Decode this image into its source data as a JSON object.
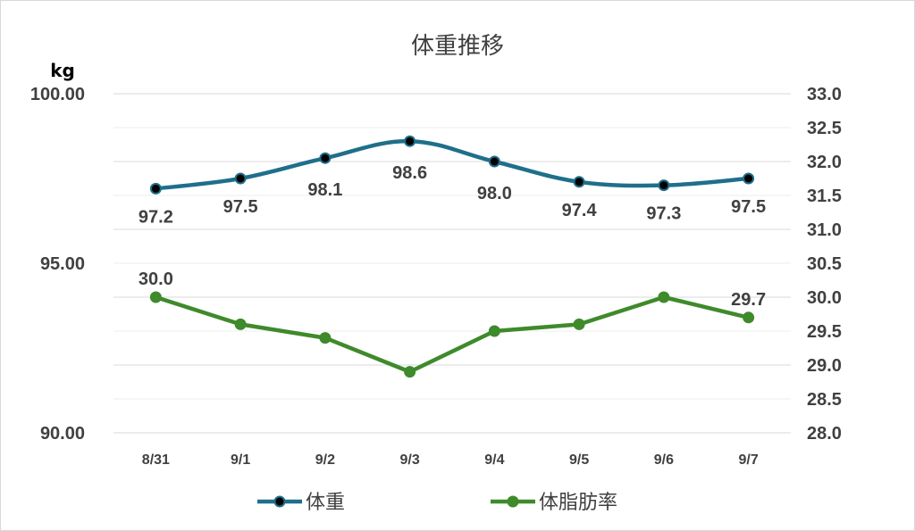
{
  "chart_data": {
    "type": "line",
    "title": "体重推移",
    "ylabel_left": "kg",
    "categories": [
      "8/31",
      "9/1",
      "9/2",
      "9/3",
      "9/4",
      "9/5",
      "9/6",
      "9/7"
    ],
    "y_left": {
      "min": 90,
      "max": 100,
      "ticks": [
        "90.00",
        "95.00",
        "100.00"
      ],
      "tick_values": [
        90,
        95,
        100
      ]
    },
    "y_right": {
      "min": 28,
      "max": 33,
      "ticks": [
        "28.0",
        "28.5",
        "29.0",
        "29.5",
        "30.0",
        "30.5",
        "31.0",
        "31.5",
        "32.0",
        "32.5",
        "33.0"
      ],
      "tick_values": [
        28,
        28.5,
        29,
        29.5,
        30,
        30.5,
        31,
        31.5,
        32,
        32.5,
        33
      ]
    },
    "grid": true,
    "legend": "bottom",
    "series": [
      {
        "name": "体重",
        "axis": "left",
        "color": "#1f6f8b",
        "marker_color": "#000000",
        "values": [
          97.2,
          97.5,
          98.1,
          98.6,
          98.0,
          97.4,
          97.3,
          97.5
        ],
        "labels": [
          "97.2",
          "97.5",
          "98.1",
          "98.6",
          "98.0",
          "97.4",
          "97.3",
          "97.5"
        ],
        "label_position": "below"
      },
      {
        "name": "体脂肪率",
        "axis": "right",
        "color": "#3f8a2b",
        "marker_color": "#3f8a2b",
        "values": [
          30.0,
          29.6,
          29.4,
          28.9,
          29.5,
          29.6,
          30.0,
          29.7
        ],
        "labels": [
          "30.0",
          "",
          "",
          "",
          "",
          "",
          "",
          "29.7"
        ],
        "label_position": "above"
      }
    ]
  }
}
